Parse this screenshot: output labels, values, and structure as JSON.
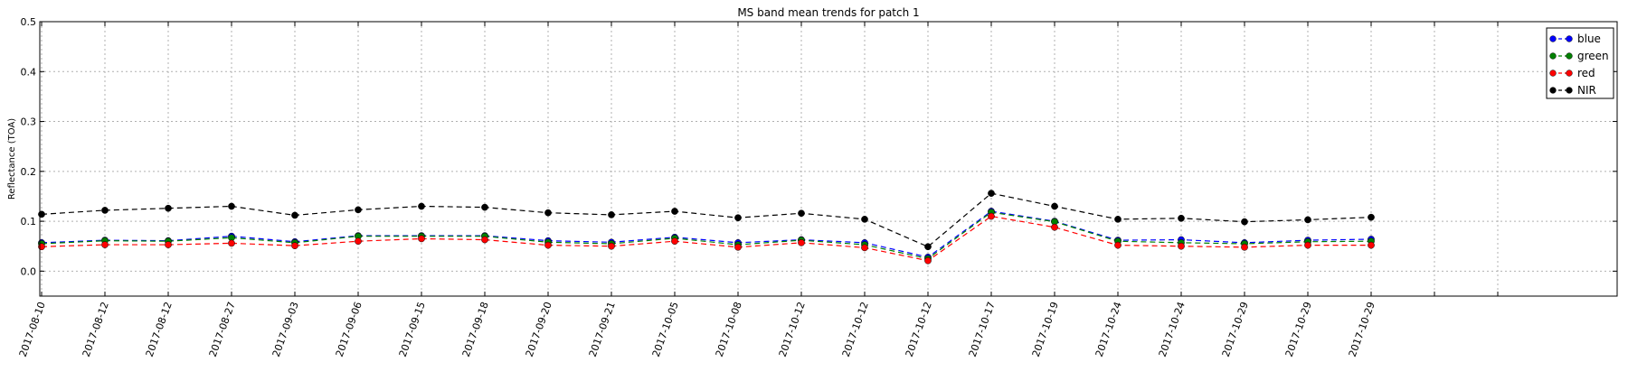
{
  "chart_data": {
    "type": "line",
    "title": "MS band mean trends for patch 1",
    "xlabel": "",
    "ylabel": "Reflectance (TOA)",
    "ylim": [
      -0.05,
      0.5
    ],
    "yticks": [
      "0.0",
      "0.1",
      "0.2",
      "0.3",
      "0.4",
      "0.5"
    ],
    "ytick_values": [
      0.0,
      0.1,
      0.2,
      0.3,
      0.4,
      0.5
    ],
    "grid": true,
    "legend_position": "top-right",
    "categories": [
      "2017-08-10",
      "2017-08-12",
      "2017-08-12",
      "2017-08-27",
      "2017-09-03",
      "2017-09-06",
      "2017-09-15",
      "2017-09-18",
      "2017-09-20",
      "2017-09-21",
      "2017-10-05",
      "2017-10-08",
      "2017-10-12",
      "2017-10-12",
      "2017-10-12",
      "2017-10-17",
      "2017-10-19",
      "2017-10-24",
      "2017-10-24",
      "2017-10-29",
      "2017-10-29",
      "2017-10-29"
    ],
    "series": [
      {
        "name": "blue",
        "color": "#0000ff",
        "values": [
          0.057,
          0.062,
          0.061,
          0.07,
          0.059,
          0.071,
          0.071,
          0.071,
          0.061,
          0.058,
          0.068,
          0.057,
          0.063,
          0.057,
          0.028,
          0.12,
          0.1,
          0.062,
          0.063,
          0.057,
          0.062,
          0.064
        ]
      },
      {
        "name": "green",
        "color": "#008000",
        "values": [
          0.055,
          0.061,
          0.06,
          0.067,
          0.057,
          0.07,
          0.07,
          0.07,
          0.058,
          0.055,
          0.066,
          0.053,
          0.062,
          0.053,
          0.025,
          0.118,
          0.099,
          0.06,
          0.057,
          0.055,
          0.059,
          0.06
        ]
      },
      {
        "name": "red",
        "color": "#ff0000",
        "values": [
          0.049,
          0.053,
          0.053,
          0.056,
          0.051,
          0.06,
          0.065,
          0.063,
          0.052,
          0.05,
          0.06,
          0.048,
          0.057,
          0.047,
          0.021,
          0.11,
          0.088,
          0.052,
          0.05,
          0.048,
          0.052,
          0.052
        ]
      },
      {
        "name": "NIR",
        "color": "#000000",
        "values": [
          0.114,
          0.122,
          0.126,
          0.13,
          0.112,
          0.123,
          0.13,
          0.128,
          0.117,
          0.113,
          0.12,
          0.107,
          0.116,
          0.104,
          0.049,
          0.156,
          0.13,
          0.104,
          0.106,
          0.099,
          0.103,
          0.108
        ]
      }
    ]
  }
}
